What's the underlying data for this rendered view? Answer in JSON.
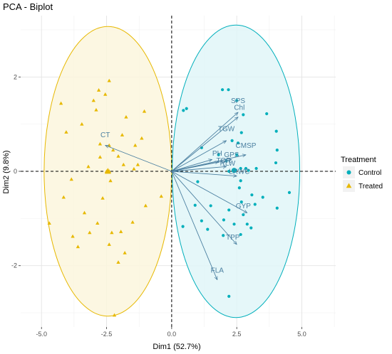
{
  "chart_data": {
    "type": "scatter",
    "title": "PCA - Biplot",
    "xlabel": "Dim1 (52.7%)",
    "ylabel": "Dim2 (9.8%)",
    "xlim": [
      -5.8,
      6.3
    ],
    "ylim": [
      -3.3,
      3.3
    ],
    "x_ticks": [
      -5.0,
      -2.5,
      0.0,
      2.5,
      5.0
    ],
    "x_tick_labels": [
      "-5.0",
      "-2.5",
      "0.0",
      "2.5",
      "5.0"
    ],
    "y_ticks": [
      -2,
      0,
      2
    ],
    "y_tick_labels": [
      "-2",
      "0",
      "2"
    ],
    "grid": true,
    "legend": {
      "title": "Treatment",
      "position": "right",
      "entries": [
        {
          "label": "Control",
          "color": "#00AFBB",
          "shape": "circle"
        },
        {
          "label": "Treated",
          "color": "#E7B800",
          "shape": "triangle"
        }
      ]
    },
    "ellipses": [
      {
        "group": "Control",
        "center": [
          2.47,
          0.0
        ],
        "rx": 2.45,
        "ry": 3.1,
        "color": "#00AFBB",
        "fill": "#e0f6f8"
      },
      {
        "group": "Treated",
        "center": [
          -2.45,
          0.0
        ],
        "rx": 2.45,
        "ry": 3.07,
        "color": "#E7B800",
        "fill": "#fbf6dd"
      }
    ],
    "series": [
      {
        "name": "Control",
        "color": "#00AFBB",
        "shape": "circle",
        "centroid": [
          2.4,
          0.02
        ],
        "points": [
          [
            1.95,
            1.73
          ],
          [
            2.18,
            1.73
          ],
          [
            0.57,
            1.33
          ],
          [
            0.45,
            1.29
          ],
          [
            2.5,
            1.5
          ],
          [
            3.65,
            1.22
          ],
          [
            2.75,
            1.2
          ],
          [
            2.68,
            0.82
          ],
          [
            4.02,
            0.85
          ],
          [
            2.32,
            0.65
          ],
          [
            2.55,
            0.6
          ],
          [
            1.15,
            0.5
          ],
          [
            1.8,
            0.35
          ],
          [
            2.5,
            0.35
          ],
          [
            4.05,
            0.45
          ],
          [
            4.0,
            0.18
          ],
          [
            2.1,
            0.22
          ],
          [
            2.65,
            0.06
          ],
          [
            2.85,
            0.06
          ],
          [
            2.95,
            0.02
          ],
          [
            3.25,
            0.06
          ],
          [
            2.2,
            0.0
          ],
          [
            1.0,
            -0.22
          ],
          [
            2.65,
            -0.2
          ],
          [
            2.6,
            -0.35
          ],
          [
            3.08,
            -0.5
          ],
          [
            4.52,
            -0.45
          ],
          [
            3.5,
            -0.55
          ],
          [
            2.68,
            -0.65
          ],
          [
            3.2,
            -0.7
          ],
          [
            4.05,
            -0.78
          ],
          [
            0.9,
            -0.72
          ],
          [
            1.5,
            -0.73
          ],
          [
            2.2,
            -0.82
          ],
          [
            2.75,
            -0.92
          ],
          [
            2.0,
            -1.03
          ],
          [
            1.15,
            -1.05
          ],
          [
            0.43,
            -1.17
          ],
          [
            2.4,
            -1.12
          ],
          [
            2.9,
            -1.12
          ],
          [
            3.05,
            -1.2
          ],
          [
            1.38,
            -1.23
          ],
          [
            1.98,
            -1.36
          ],
          [
            2.65,
            -1.34
          ],
          [
            2.2,
            -2.65
          ]
        ]
      },
      {
        "name": "Treated",
        "color": "#E7B800",
        "shape": "triangle",
        "centroid": [
          -2.45,
          0.0
        ],
        "points": [
          [
            -2.4,
            1.92
          ],
          [
            -2.8,
            1.72
          ],
          [
            -2.55,
            1.63
          ],
          [
            -4.25,
            1.44
          ],
          [
            -3.0,
            1.5
          ],
          [
            -2.9,
            1.3
          ],
          [
            -1.75,
            1.15
          ],
          [
            -1.05,
            1.27
          ],
          [
            -3.45,
            1.0
          ],
          [
            -4.05,
            0.83
          ],
          [
            -1.9,
            0.77
          ],
          [
            -2.75,
            0.58
          ],
          [
            -1.15,
            0.7
          ],
          [
            -2.25,
            0.45
          ],
          [
            -1.4,
            0.55
          ],
          [
            -2.4,
            0.55
          ],
          [
            -2.05,
            0.32
          ],
          [
            -1.3,
            0.14
          ],
          [
            -2.75,
            0.3
          ],
          [
            -3.2,
            0.1
          ],
          [
            -1.85,
            0.14
          ],
          [
            -1.45,
            0.05
          ],
          [
            -2.5,
            0.0
          ],
          [
            -2.4,
            0.0
          ],
          [
            -3.85,
            -0.17
          ],
          [
            -2.35,
            -0.2
          ],
          [
            -4.15,
            -0.55
          ],
          [
            -0.4,
            -0.53
          ],
          [
            -2.65,
            -0.57
          ],
          [
            -1.0,
            -0.73
          ],
          [
            -3.35,
            -0.88
          ],
          [
            -1.5,
            -1.08
          ],
          [
            -4.7,
            -1.1
          ],
          [
            -2.85,
            -1.1
          ],
          [
            -3.15,
            -1.3
          ],
          [
            -1.95,
            -1.28
          ],
          [
            -3.8,
            -1.38
          ],
          [
            -2.3,
            -1.3
          ],
          [
            -3.6,
            -1.6
          ],
          [
            -2.4,
            -1.55
          ],
          [
            -1.8,
            -1.73
          ],
          [
            -2.05,
            -1.93
          ],
          [
            -2.2,
            -3.05
          ]
        ]
      }
    ],
    "variables": [
      {
        "name": "SPS",
        "x": 2.55,
        "y": 1.25,
        "lx": 2.55,
        "ly": 1.45
      },
      {
        "name": "Chl",
        "x": 2.55,
        "y": 1.15,
        "lx": 2.6,
        "ly": 1.3
      },
      {
        "name": "TGW",
        "x": 2.1,
        "y": 0.65,
        "lx": 2.1,
        "ly": 0.85
      },
      {
        "name": "CMSP",
        "x": 2.85,
        "y": 0.35,
        "lx": 2.85,
        "ly": 0.5
      },
      {
        "name": "PH",
        "x": 1.55,
        "y": 0.25,
        "lx": 1.75,
        "ly": 0.33
      },
      {
        "name": "GPS",
        "x": 2.3,
        "y": 0.25,
        "lx": 2.3,
        "ly": 0.3
      },
      {
        "name": "TOR",
        "x": 1.8,
        "y": 0.2,
        "lx": 2.0,
        "ly": 0.18
      },
      {
        "name": "RLW",
        "x": 2.1,
        "y": 0.1,
        "lx": 2.15,
        "ly": 0.12
      },
      {
        "name": "LRWC",
        "x": 2.5,
        "y": -0.1,
        "lx": 2.6,
        "ly": -0.05
      },
      {
        "name": "GYP",
        "x": 2.9,
        "y": -0.88,
        "lx": 2.75,
        "ly": -0.78
      },
      {
        "name": "TPP",
        "x": 2.5,
        "y": -1.55,
        "lx": 2.35,
        "ly": -1.45
      },
      {
        "name": "FLA",
        "x": 1.75,
        "y": -2.3,
        "lx": 1.75,
        "ly": -2.15
      },
      {
        "name": "CT",
        "x": -2.55,
        "y": 0.55,
        "lx": -2.55,
        "ly": 0.72
      }
    ],
    "arrow_color": "#4a7fa0"
  }
}
